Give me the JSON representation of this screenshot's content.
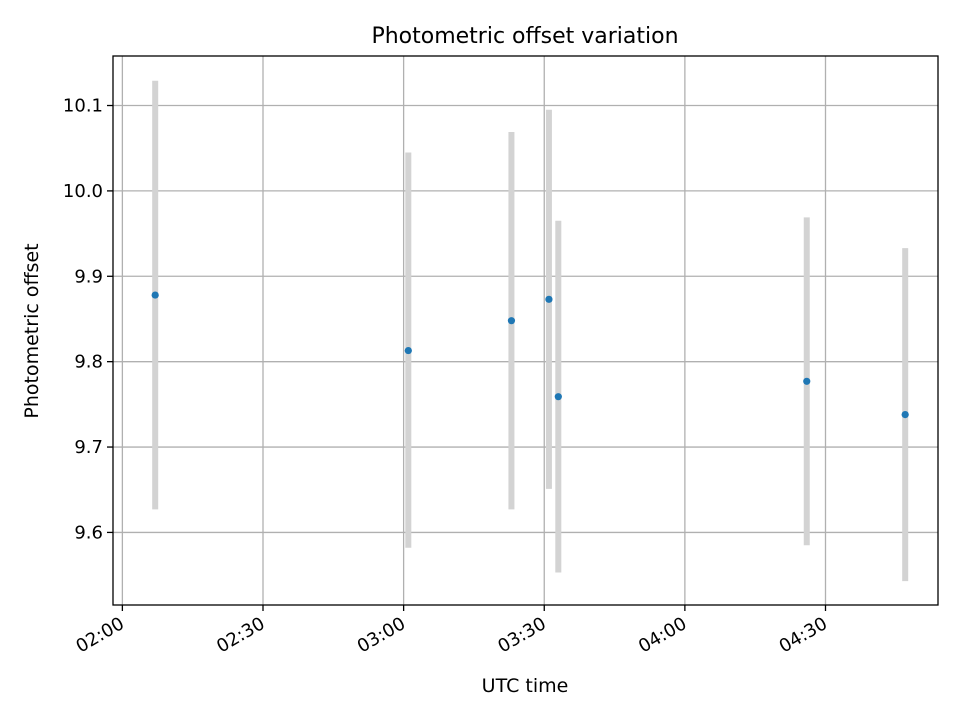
{
  "chart_data": {
    "type": "scatter",
    "title": "Photometric offset variation",
    "xlabel": "UTC time",
    "ylabel": "Photometric offset",
    "x_ticks": [
      "02:00",
      "02:30",
      "03:00",
      "03:30",
      "04:00",
      "04:30"
    ],
    "y_ticks": [
      "9.6",
      "9.7",
      "9.8",
      "9.9",
      "10.0",
      "10.1"
    ],
    "xlim": [
      "01:58",
      "04:54"
    ],
    "ylim": [
      9.515,
      10.158
    ],
    "grid": true,
    "points": [
      {
        "x": "02:07",
        "y": 9.878,
        "ylow": 9.627,
        "yhigh": 10.129
      },
      {
        "x": "03:01",
        "y": 9.813,
        "ylow": 9.582,
        "yhigh": 10.045
      },
      {
        "x": "03:23",
        "y": 9.848,
        "ylow": 9.627,
        "yhigh": 10.069
      },
      {
        "x": "03:31",
        "y": 9.873,
        "ylow": 9.651,
        "yhigh": 10.095
      },
      {
        "x": "03:33",
        "y": 9.759,
        "ylow": 9.553,
        "yhigh": 9.965
      },
      {
        "x": "04:26",
        "y": 9.777,
        "ylow": 9.585,
        "yhigh": 9.969
      },
      {
        "x": "04:47",
        "y": 9.738,
        "ylow": 9.543,
        "yhigh": 9.933
      }
    ],
    "colors": {
      "marker": "#1f77b4",
      "errorbar": "#d3d3d3",
      "grid": "#b0b0b0"
    }
  }
}
